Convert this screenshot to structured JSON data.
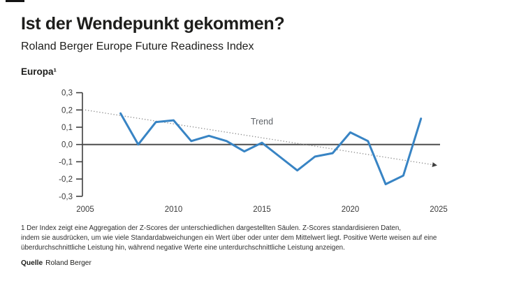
{
  "page": {
    "title": "Ist der Wendepunkt gekommen?",
    "subtitle": "Roland Berger Europe Future Readiness Index",
    "footnote_lines": [
      "1 Der Index zeigt eine Aggregation der Z-Scores der unterschiedlichen dargestellten Säulen. Z-Scores standardisieren Daten,",
      "indem sie ausdrücken, um wie viele Standardabweichungen ein Wert über oder unter dem Mittelwert liegt. Positive Werte weisen auf eine",
      "überdurchschnittliche Leistung hin, während negative Werte eine unterdurchschnittliche Leistung anzeigen."
    ],
    "source_label": "Quelle",
    "source_value": "Roland Berger"
  },
  "chart_data": {
    "type": "line",
    "series_label": "Europa¹",
    "x": [
      2007,
      2008,
      2009,
      2010,
      2011,
      2012,
      2013,
      2014,
      2015,
      2016,
      2017,
      2018,
      2019,
      2020,
      2021,
      2022,
      2023,
      2024
    ],
    "values": [
      0.18,
      0.0,
      0.13,
      0.14,
      0.02,
      0.05,
      0.02,
      -0.04,
      0.01,
      -0.07,
      -0.15,
      -0.07,
      -0.05,
      0.07,
      0.02,
      -0.23,
      -0.18,
      0.15
    ],
    "trend": {
      "label": "Trend",
      "x": [
        2005,
        2025
      ],
      "y": [
        0.2,
        -0.12
      ]
    },
    "xticks": [
      "2005",
      "2010",
      "2015",
      "2020",
      "2025"
    ],
    "yticks": [
      {
        "value": 0.3,
        "label": "0,3"
      },
      {
        "value": 0.2,
        "label": "0,2"
      },
      {
        "value": 0.1,
        "label": "0,1"
      },
      {
        "value": 0.0,
        "label": "0,0"
      },
      {
        "value": -0.1,
        "label": "-0,1"
      },
      {
        "value": -0.2,
        "label": "-0,2"
      },
      {
        "value": -0.3,
        "label": "-0,3"
      }
    ],
    "xlim": [
      2005,
      2025
    ],
    "ylim": [
      -0.3,
      0.3
    ],
    "xlabel": "",
    "ylabel": "",
    "grid": false,
    "legend_position": "none"
  },
  "colors": {
    "line": "#3884C4",
    "trend": "#8a8a8a",
    "trend_arrow": "#3f3f3f",
    "zero_line": "#4d4d4d",
    "axis": "#3f3f3f",
    "title": "#1d1d1b",
    "text": "#2e2e2e"
  }
}
